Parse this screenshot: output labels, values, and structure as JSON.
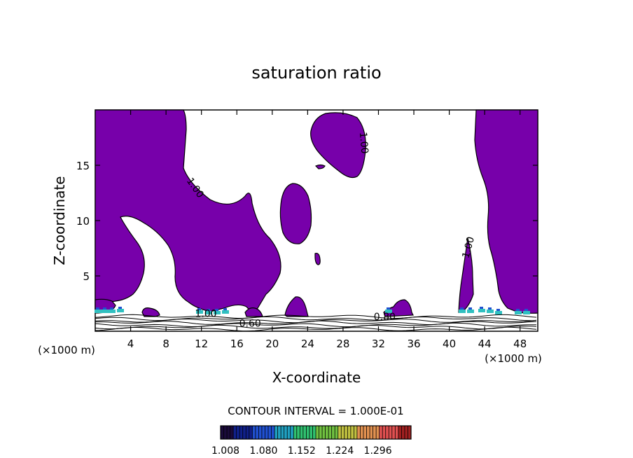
{
  "chart_data": {
    "type": "contour",
    "title": "saturation ratio",
    "xlabel": "X-coordinate",
    "ylabel": "Z-coordinate",
    "x_unit": "(×1000 m)",
    "x_unit_right": "(×1000 m)",
    "xlim": [
      0,
      50
    ],
    "ylim": [
      0,
      20
    ],
    "x_ticks": [
      4,
      8,
      12,
      16,
      20,
      24,
      28,
      32,
      36,
      40,
      44,
      48
    ],
    "y_ticks": [
      5,
      10,
      15
    ],
    "contour_labels": [
      {
        "text": "1.00",
        "x": 11.0,
        "y": 12.8,
        "angle": 55
      },
      {
        "text": "1.00",
        "x": 30.0,
        "y": 17.0,
        "angle": 85
      },
      {
        "text": "1.00",
        "x": 42.5,
        "y": 7.5,
        "angle": -75
      },
      {
        "text": "1.00",
        "x": 12.5,
        "y": 1.3,
        "angle": 0
      },
      {
        "text": "0.60",
        "x": 17.5,
        "y": 0.4,
        "angle": 0
      },
      {
        "text": "0.80",
        "x": 32.7,
        "y": 1.0,
        "angle": 0
      }
    ],
    "fill_color": "#7700AA",
    "contour_interval_text": "CONTOUR INTERVAL = 1.000E-01",
    "colorbar": {
      "tick_labels": [
        "1.008",
        "1.080",
        "1.152",
        "1.224",
        "1.296"
      ],
      "min": 1.008,
      "max": 1.368,
      "colors": [
        "#1a0a3a",
        "#10208a",
        "#2050d0",
        "#20a0c0",
        "#30c070",
        "#70c040",
        "#c0c040",
        "#e09050",
        "#e05050",
        "#a02020"
      ]
    }
  }
}
